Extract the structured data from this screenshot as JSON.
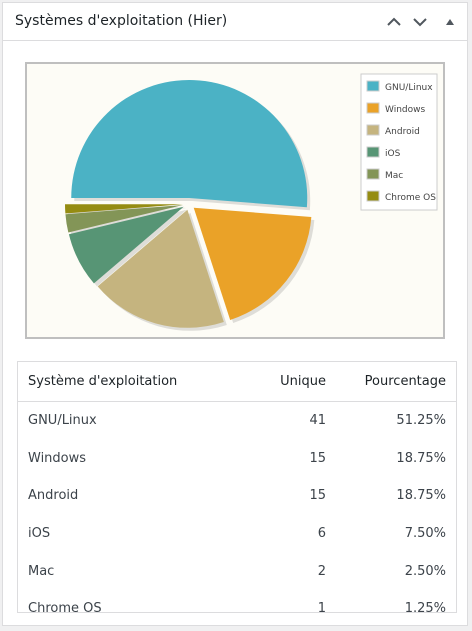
{
  "widget": {
    "title": "Systèmes d'exploitation (Hier)",
    "buttons": [
      "chevron-up-icon",
      "chevron-down-icon",
      "triangle-up-icon"
    ]
  },
  "chart_data": {
    "type": "pie",
    "categories": [
      "GNU/Linux",
      "Windows",
      "Android",
      "iOS",
      "Mac",
      "Chrome OS"
    ],
    "values": [
      41,
      15,
      15,
      6,
      2,
      1
    ],
    "colors": [
      "#4bb2c5",
      "#eaa228",
      "#c5b47f",
      "#579575",
      "#839557",
      "#958c12"
    ],
    "legend_position": "top-right"
  },
  "table": {
    "headers": [
      "Système d'exploitation",
      "Unique",
      "Pourcentage"
    ],
    "rows": [
      [
        "GNU/Linux",
        "41",
        "51.25%"
      ],
      [
        "Windows",
        "15",
        "18.75%"
      ],
      [
        "Android",
        "15",
        "18.75%"
      ],
      [
        "iOS",
        "6",
        "7.50%"
      ],
      [
        "Mac",
        "2",
        "2.50%"
      ],
      [
        "Chrome OS",
        "1",
        "1.25%"
      ]
    ]
  }
}
